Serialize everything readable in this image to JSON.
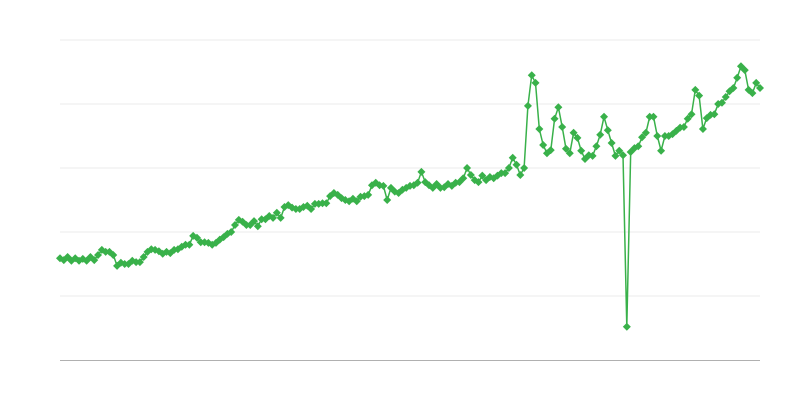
{
  "chart_data": {
    "type": "line",
    "title": "",
    "xlabel": "",
    "ylabel": "",
    "ylim": [
      0,
      5
    ],
    "grid": true,
    "gridlines": [
      1,
      2,
      3,
      4,
      5
    ],
    "markers": "diamond",
    "legend": "none",
    "colors": {
      "series": "#39b14a",
      "grid": "#ebebeb",
      "axis": "#b0b0b0"
    },
    "series": [
      {
        "values": [
          1.59,
          1.56,
          1.61,
          1.55,
          1.59,
          1.55,
          1.58,
          1.55,
          1.61,
          1.56,
          1.64,
          1.72,
          1.69,
          1.69,
          1.64,
          1.47,
          1.52,
          1.5,
          1.5,
          1.55,
          1.53,
          1.53,
          1.61,
          1.69,
          1.73,
          1.72,
          1.7,
          1.66,
          1.69,
          1.67,
          1.72,
          1.73,
          1.77,
          1.8,
          1.8,
          1.94,
          1.91,
          1.84,
          1.84,
          1.83,
          1.8,
          1.83,
          1.88,
          1.92,
          1.97,
          2.0,
          2.11,
          2.19,
          2.16,
          2.11,
          2.11,
          2.17,
          2.09,
          2.2,
          2.2,
          2.25,
          2.22,
          2.3,
          2.22,
          2.39,
          2.42,
          2.38,
          2.36,
          2.36,
          2.39,
          2.41,
          2.36,
          2.44,
          2.44,
          2.45,
          2.45,
          2.56,
          2.61,
          2.58,
          2.53,
          2.5,
          2.48,
          2.52,
          2.48,
          2.55,
          2.56,
          2.58,
          2.73,
          2.77,
          2.73,
          2.72,
          2.5,
          2.69,
          2.63,
          2.61,
          2.66,
          2.69,
          2.72,
          2.73,
          2.77,
          2.94,
          2.78,
          2.73,
          2.69,
          2.75,
          2.69,
          2.7,
          2.75,
          2.72,
          2.77,
          2.78,
          2.84,
          3.0,
          2.89,
          2.81,
          2.78,
          2.88,
          2.81,
          2.86,
          2.84,
          2.88,
          2.92,
          2.92,
          3.0,
          3.16,
          3.05,
          2.89,
          3.0,
          3.97,
          4.45,
          4.33,
          3.61,
          3.36,
          3.23,
          3.28,
          3.77,
          3.95,
          3.64,
          3.3,
          3.23,
          3.55,
          3.47,
          3.27,
          3.14,
          3.2,
          3.19,
          3.34,
          3.52,
          3.8,
          3.59,
          3.39,
          3.19,
          3.27,
          3.2,
          0.52,
          3.25,
          3.31,
          3.34,
          3.48,
          3.55,
          3.8,
          3.8,
          3.5,
          3.27,
          3.5,
          3.5,
          3.53,
          3.58,
          3.63,
          3.64,
          3.77,
          3.84,
          4.22,
          4.13,
          3.61,
          3.78,
          3.83,
          3.84,
          4.0,
          4.02,
          4.11,
          4.2,
          4.25,
          4.41,
          4.59,
          4.53,
          4.22,
          4.17,
          4.33,
          4.25
        ]
      }
    ]
  }
}
